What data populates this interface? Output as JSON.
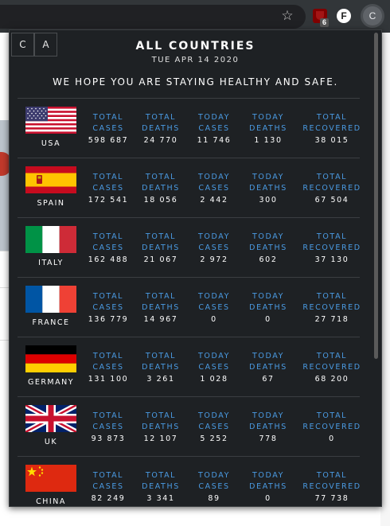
{
  "browser": {
    "extensions": {
      "ublock_badge": "6",
      "f_label": "F",
      "profile_label": "C"
    }
  },
  "popup": {
    "buttons": {
      "c_label": "C",
      "a_label": "A"
    },
    "title": "ALL COUNTRIES",
    "date": "TUE APR 14 2020",
    "message": "WE HOPE YOU ARE STAYING HEALTHY AND SAFE.",
    "labels": {
      "total_cases": "TOTAL\nCASES",
      "total_deaths": "TOTAL\nDEATHS",
      "today_cases": "TODAY\nCASES",
      "today_deaths": "TODAY\nDEATHS",
      "total_recovered": "TOTAL\nRECOVERED"
    },
    "countries": [
      {
        "name": "USA",
        "total_cases": "598 687",
        "total_deaths": "24 770",
        "today_cases": "11 746",
        "today_deaths": "1 130",
        "total_recovered": "38 015"
      },
      {
        "name": "SPAIN",
        "total_cases": "172 541",
        "total_deaths": "18 056",
        "today_cases": "2 442",
        "today_deaths": "300",
        "total_recovered": "67 504"
      },
      {
        "name": "ITALY",
        "total_cases": "162 488",
        "total_deaths": "21 067",
        "today_cases": "2 972",
        "today_deaths": "602",
        "total_recovered": "37 130"
      },
      {
        "name": "FRANCE",
        "total_cases": "136 779",
        "total_deaths": "14 967",
        "today_cases": "0",
        "today_deaths": "0",
        "total_recovered": "27 718"
      },
      {
        "name": "GERMANY",
        "total_cases": "131 100",
        "total_deaths": "3 261",
        "today_cases": "1 028",
        "today_deaths": "67",
        "total_recovered": "68 200"
      },
      {
        "name": "UK",
        "total_cases": "93 873",
        "total_deaths": "12 107",
        "today_cases": "5 252",
        "today_deaths": "778",
        "total_recovered": "0"
      },
      {
        "name": "CHINA",
        "total_cases": "82 249",
        "total_deaths": "3 341",
        "today_cases": "89",
        "today_deaths": "0",
        "total_recovered": "77 738"
      }
    ]
  },
  "colors": {
    "popup_bg": "#1e2124",
    "label_blue": "#4a9ae2",
    "divider": "#3b3e42"
  }
}
